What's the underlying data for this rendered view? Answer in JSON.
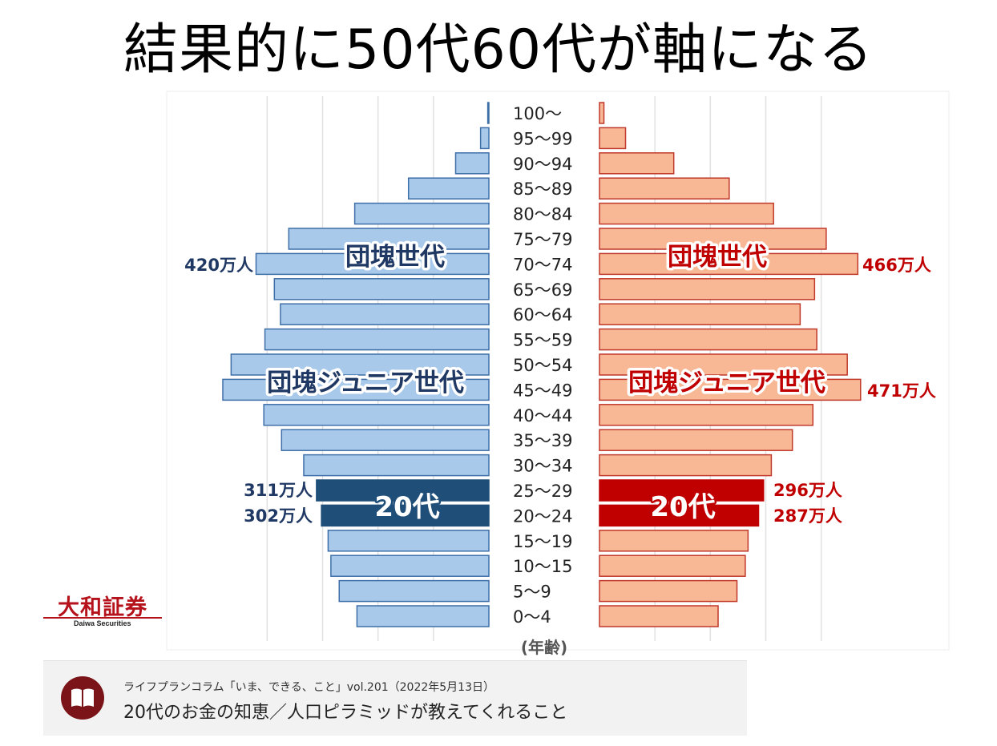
{
  "title": "結果的に50代60代が軸になる",
  "chart_data": {
    "type": "bar",
    "subtype": "population-pyramid",
    "categories": [
      "100〜",
      "95〜99",
      "90〜94",
      "85〜89",
      "80〜84",
      "75〜79",
      "70〜74",
      "65〜69",
      "60〜64",
      "55〜59",
      "50〜54",
      "45〜49",
      "40〜44",
      "35〜39",
      "30〜34",
      "25〜29",
      "20〜24",
      "15〜19",
      "10〜15",
      "5〜9",
      "0〜4"
    ],
    "xlabel": "(年齢)",
    "series": [
      {
        "side": "left",
        "values": [
          2,
          15,
          60,
          145,
          242,
          361,
          420,
          387,
          376,
          404,
          465,
          480,
          406,
          374,
          334,
          311,
          302,
          290,
          285,
          270,
          238
        ]
      },
      {
        "side": "right",
        "values": [
          8,
          47,
          134,
          234,
          314,
          409,
          466,
          388,
          362,
          392,
          447,
          471,
          385,
          348,
          310,
          296,
          287,
          268,
          263,
          248,
          214
        ]
      }
    ],
    "xlim": [
      0,
      560
    ],
    "grid": true,
    "highlight_categories": [
      "25〜29",
      "20〜24"
    ],
    "colors": {
      "left": "#a8c9ea",
      "left_border": "#3f6fa8",
      "left_highlight": "#1f4e79",
      "left_text": "#1f3864",
      "right": "#f8b895",
      "right_border": "#c0392b",
      "right_highlight": "#c00000",
      "right_text": "#c00000",
      "grid": "#e1e1e1",
      "age_text": "#222222"
    },
    "annotations": {
      "dankai": "団塊世代",
      "dankai_junior": "団塊ジュニア世代",
      "twenties": "20代",
      "left_70_74": "420万人",
      "right_70_74": "466万人",
      "right_45_49": "471万人",
      "left_25_29": "311万人",
      "left_20_24": "302万人",
      "right_25_29": "296万人",
      "right_20_24": "287万人"
    }
  },
  "logo": {
    "jp": "大和証券",
    "en": "Daiwa Securities"
  },
  "source": {
    "icon": "book-icon",
    "subtitle": "ライフプランコラム「いま、できる、こと」vol.201（2022年5月13日）",
    "title": "20代のお金の知恵／人口ピラミッドが教えてくれること"
  }
}
